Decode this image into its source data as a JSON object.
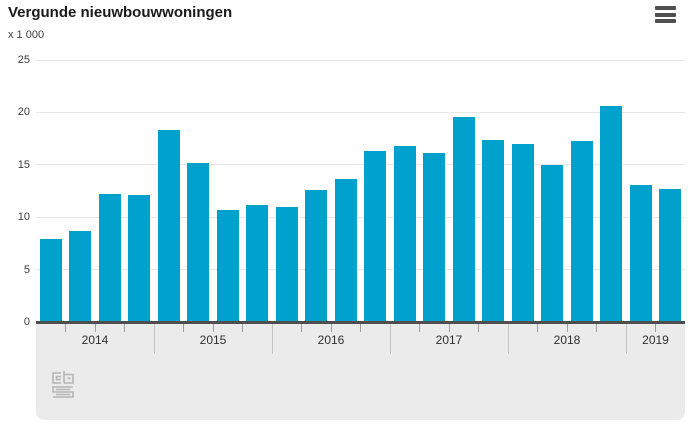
{
  "header": {
    "title": "Vergunde nieuwbouwwoningen",
    "unit_label": "x 1 000"
  },
  "icons": {
    "menu": "hamburger-menu-icon",
    "logo": "cbs-logo"
  },
  "colors": {
    "bar": "#00a1cd",
    "axis_line": "#4e4e4e",
    "gridline": "#e7e7e7",
    "axis_band_bg": "#ebebeb",
    "tick": "#9f9f9f",
    "year_separator": "#c3c3c3",
    "title_text": "#1a1a1a",
    "label_text": "#3c3c3c",
    "logo": "#b6b6b6",
    "menu_icon": "#4f4f4f"
  },
  "chart_data": {
    "type": "bar",
    "title": "Vergunde nieuwbouwwoningen",
    "unit_label": "x 1 000",
    "xlabel": "",
    "ylabel": "x 1 000",
    "ylim": [
      0,
      25
    ],
    "yticks": [
      0,
      5,
      10,
      15,
      20,
      25
    ],
    "grid": true,
    "legend": false,
    "bar_color": "#00a1cd",
    "granularity": "quarterly",
    "years": [
      {
        "label": "2014",
        "values": [
          7.9,
          8.7,
          12.2,
          12.1
        ]
      },
      {
        "label": "2015",
        "values": [
          18.3,
          15.2,
          10.7,
          11.2
        ]
      },
      {
        "label": "2016",
        "values": [
          11.0,
          12.6,
          13.6,
          16.3
        ]
      },
      {
        "label": "2017",
        "values": [
          16.8,
          16.1,
          19.6,
          17.4
        ]
      },
      {
        "label": "2018",
        "values": [
          17.0,
          15.0,
          17.3,
          20.6
        ]
      },
      {
        "label": "2019",
        "values": [
          13.1,
          12.7
        ]
      }
    ]
  }
}
